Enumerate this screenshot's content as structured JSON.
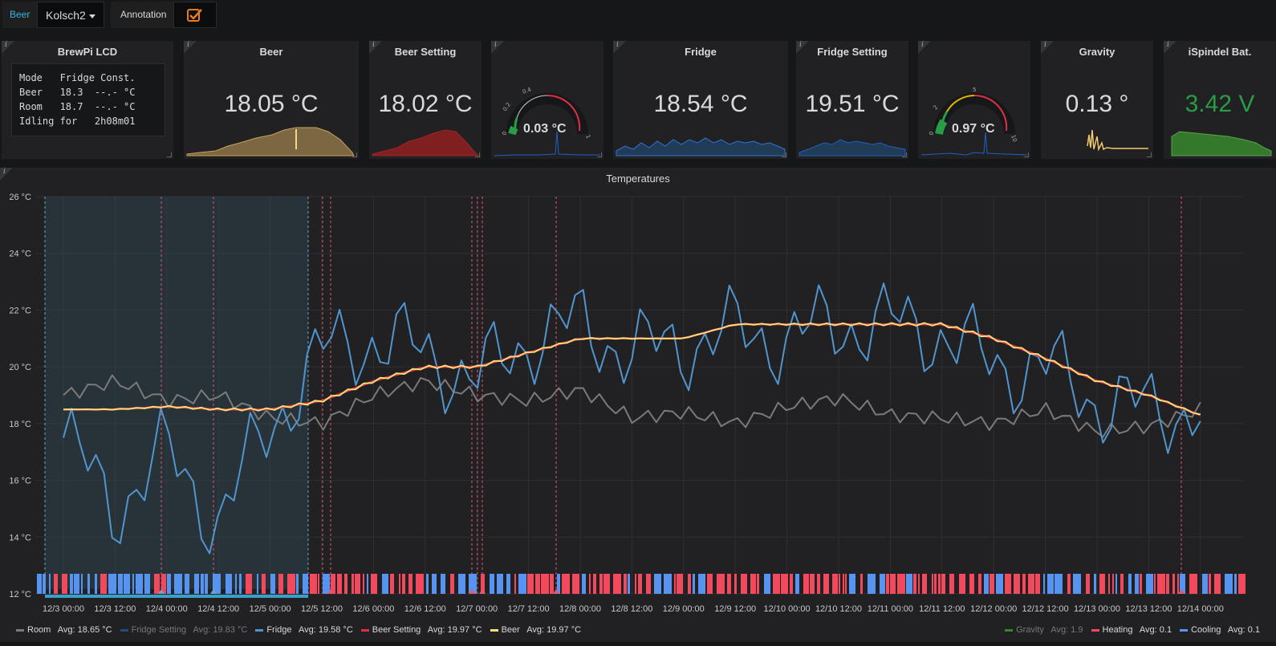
{
  "toolbar": {
    "var_label": "Beer",
    "var_value": "Kolsch2",
    "annotation_label": "Annotation",
    "annotation_checked": true
  },
  "panels": {
    "lcd": {
      "title": "BrewPi LCD",
      "lines": [
        "Mode   Fridge Const.",
        "Beer   18.3  --.- °C",
        "Room   18.7  --.- °C",
        "Idling for   2h08m01"
      ]
    },
    "beer": {
      "title": "Beer",
      "value": "18.05 °C",
      "color": "#c7a35a"
    },
    "beer_setting": {
      "title": "Beer Setting",
      "value": "18.02 °C",
      "color": "#8f1e1e"
    },
    "gauge1": {
      "title": "",
      "value": "0.03 °C",
      "ticks": [
        "0",
        "0.2",
        "0.4",
        "1"
      ]
    },
    "fridge": {
      "title": "Fridge",
      "value": "18.54 °C",
      "color": "#1f4e79"
    },
    "fridge_setting": {
      "title": "Fridge Setting",
      "value": "19.51 °C",
      "color": "#1f4e79"
    },
    "gauge2": {
      "title": "",
      "value": "0.97 °C",
      "ticks": [
        "0",
        "2",
        "5",
        "10"
      ]
    },
    "gravity": {
      "title": "Gravity",
      "value": "0.13 °",
      "color": "#f2c96d"
    },
    "battery": {
      "title": "iSpindel Bat.",
      "value": "3.42 V",
      "value_color": "#299c46",
      "color": "#37872d"
    }
  },
  "temperatures": {
    "title": "Temperatures",
    "y_ticks": [
      "26 °C",
      "24 °C",
      "22 °C",
      "20 °C",
      "18 °C",
      "16 °C",
      "14 °C",
      "12 °C"
    ],
    "x_ticks": [
      "12/3 00:00",
      "12/3 12:00",
      "12/4 00:00",
      "12/4 12:00",
      "12/5 00:00",
      "12/5 12:00",
      "12/6 00:00",
      "12/6 12:00",
      "12/7 00:00",
      "12/7 12:00",
      "12/8 00:00",
      "12/8 12:00",
      "12/9 00:00",
      "12/9 12:00",
      "12/10 00:00",
      "12/10 12:00",
      "12/11 00:00",
      "12/11 12:00",
      "12/12 00:00",
      "12/12 12:00",
      "12/13 00:00",
      "12/13 12:00",
      "12/14 00:00"
    ],
    "legend_left": [
      {
        "label": "Room",
        "stat": "Avg: 18.65 °C",
        "color": "#7a7a7a",
        "muted": false
      },
      {
        "label": "Fridge Setting",
        "stat": "Avg: 19.83 °C",
        "color": "#1f4e79",
        "muted": true
      },
      {
        "label": "Fridge",
        "stat": "Avg: 19.58 °C",
        "color": "#5195ce",
        "muted": false
      },
      {
        "label": "Beer Setting",
        "stat": "Avg: 19.97 °C",
        "color": "#e02f44",
        "muted": false
      },
      {
        "label": "Beer",
        "stat": "Avg: 19.97 °C",
        "color": "#fade7a",
        "muted": false
      }
    ],
    "legend_right": [
      {
        "label": "Gravity",
        "stat": "Avg: 1.9",
        "color": "#37872d",
        "muted": true
      },
      {
        "label": "Heating",
        "stat": "Avg: 0.1",
        "color": "#f2495c",
        "muted": false
      },
      {
        "label": "Cooling",
        "stat": "Avg: 0.1",
        "color": "#5794f2",
        "muted": false
      }
    ]
  },
  "chart_data": {
    "type": "line",
    "title": "Temperatures",
    "xlabel": "",
    "ylabel": "",
    "ylim": [
      12,
      26
    ],
    "x": [
      "12/3 00:00",
      "12/3 12:00",
      "12/4 00:00",
      "12/4 12:00",
      "12/5 00:00",
      "12/5 12:00",
      "12/6 00:00",
      "12/6 12:00",
      "12/7 00:00",
      "12/7 12:00",
      "12/8 00:00",
      "12/8 12:00",
      "12/9 00:00",
      "12/9 12:00",
      "12/10 00:00",
      "12/10 12:00",
      "12/11 00:00",
      "12/11 12:00",
      "12/12 00:00",
      "12/12 12:00",
      "12/13 00:00",
      "12/13 12:00",
      "12/14 00:00"
    ],
    "series": [
      {
        "name": "Room",
        "values": [
          19.0,
          19.5,
          18.8,
          19.0,
          18.2,
          18.0,
          19.0,
          19.5,
          19.0,
          18.8,
          19.2,
          18.2,
          18.4,
          18.0,
          18.6,
          18.9,
          18.3,
          18.2,
          18.0,
          18.5,
          17.7,
          17.9,
          18.5
        ]
      },
      {
        "name": "Fridge",
        "values": [
          17.5,
          15.0,
          17.0,
          14.5,
          18.0,
          20.5,
          21.0,
          20.5,
          19.5,
          21.0,
          21.5,
          20.5,
          20.8,
          21.2,
          21.0,
          21.5,
          21.5,
          21.2,
          20.0,
          20.0,
          18.8,
          18.5,
          18.5
        ]
      },
      {
        "name": "Beer Setting",
        "values": [
          18.5,
          18.5,
          18.6,
          18.5,
          18.5,
          18.8,
          19.5,
          20.0,
          20.0,
          20.5,
          21.0,
          21.0,
          21.0,
          21.5,
          21.5,
          21.5,
          21.5,
          21.5,
          21.0,
          20.3,
          19.5,
          19.0,
          18.3
        ]
      },
      {
        "name": "Beer",
        "values": [
          18.5,
          18.5,
          18.6,
          18.5,
          18.5,
          18.8,
          19.5,
          20.0,
          20.0,
          20.5,
          21.0,
          21.0,
          21.0,
          21.5,
          21.5,
          21.5,
          21.5,
          21.5,
          21.0,
          20.3,
          19.5,
          19.0,
          18.3
        ]
      }
    ],
    "legend": "bottom",
    "grid": true
  }
}
